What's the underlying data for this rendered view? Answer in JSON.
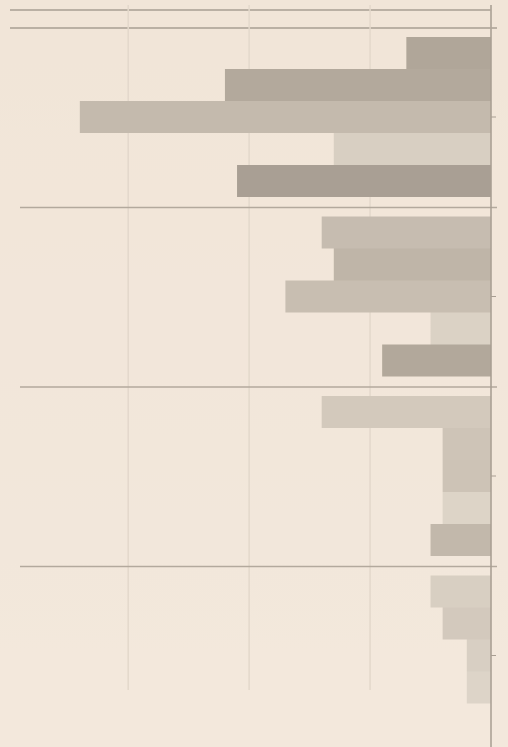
{
  "chart_data": {
    "type": "bar",
    "orientation": "horizontal",
    "x_reversed": true,
    "xlim": [
      0,
      4.06
    ],
    "xticks": [
      0,
      1,
      2,
      3
    ],
    "grid": true,
    "groups": [
      {
        "values": [
          0.7,
          2.2,
          3.4,
          1.3,
          2.1
        ],
        "colors": [
          "#b0a699",
          "#b3a99c",
          "#c4baad",
          "#d8cfc2",
          "#a99f94"
        ]
      },
      {
        "values": [
          1.4,
          1.3,
          1.7,
          0.5,
          0.9
        ],
        "colors": [
          "#c6bcb0",
          "#bfb5a8",
          "#c8beb1",
          "#dbd2c5",
          "#b2a89b"
        ]
      },
      {
        "values": [
          1.4,
          0.4,
          0.4,
          0.4,
          0.5
        ],
        "colors": [
          "#d3c9bc",
          "#cec4b7",
          "#cdc3b6",
          "#ddd4c7",
          "#c2b8ab"
        ]
      },
      {
        "values": [
          0.5,
          0.4,
          0.2,
          0.2
        ],
        "colors": [
          "#d8cfc2",
          "#d3c9bd",
          "#d8cfc3",
          "#ddd4c8"
        ]
      }
    ]
  }
}
